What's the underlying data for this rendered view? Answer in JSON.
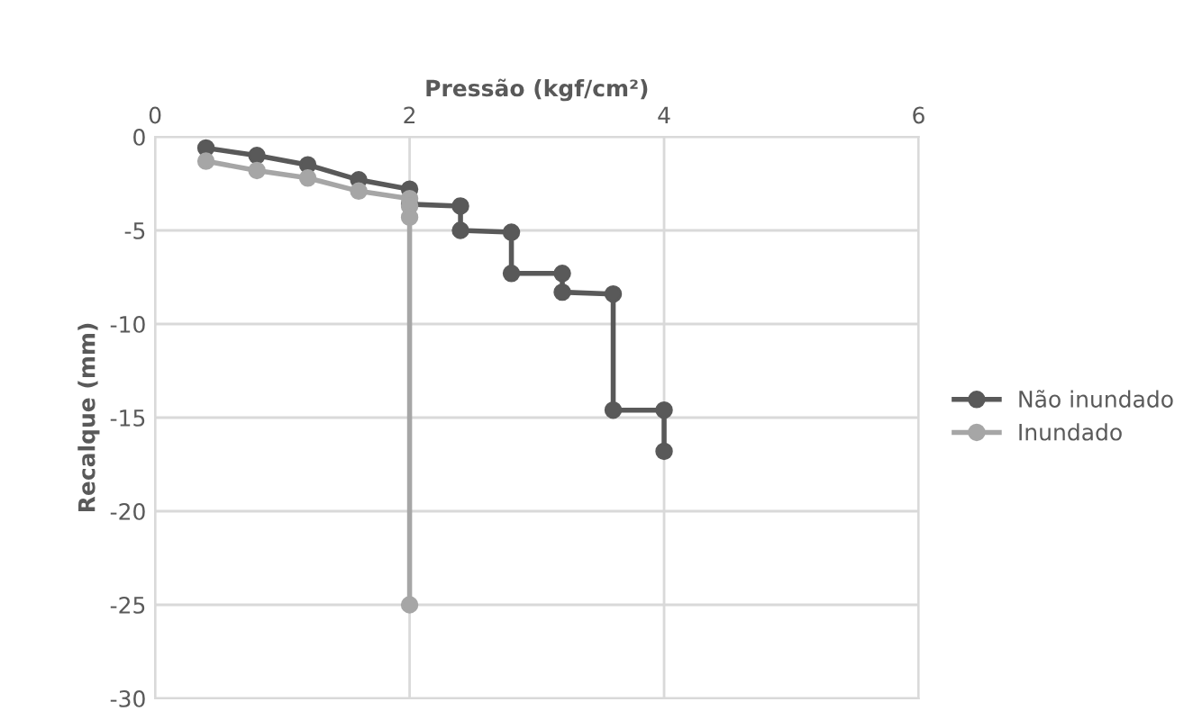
{
  "chart_data": {
    "type": "line",
    "xlabel": "Pressão (kgf/cm²)",
    "ylabel": "Recalque (mm)",
    "xlim": [
      0,
      6
    ],
    "xticks": [
      0,
      2,
      4,
      6
    ],
    "ylim": [
      -30,
      0
    ],
    "yticks": [
      -30,
      -25,
      -20,
      -15,
      -10,
      -5,
      0
    ],
    "grid": true,
    "legend": "right",
    "marker": "circle",
    "line_style": "solid",
    "series": [
      {
        "name": "Não inundado",
        "color": "#595959",
        "x": [
          0.4,
          0.8,
          1.2,
          1.6,
          2,
          2,
          2.4,
          2.4,
          2.8,
          2.8,
          3.2,
          3.2,
          3.6,
          3.6,
          4,
          4
        ],
        "values": [
          -0.6,
          -1,
          -1.5,
          -2.3,
          -2.8,
          -3.6,
          -3.7,
          -5.0,
          -5.1,
          -7.3,
          -7.3,
          -8.3,
          -8.4,
          -14.6,
          -14.6,
          -16.8
        ]
      },
      {
        "name": "Inundado",
        "color": "#a6a6a6",
        "x": [
          0.4,
          0.8,
          1.2,
          1.6,
          2,
          2,
          2,
          2
        ],
        "values": [
          -1.3,
          -1.8,
          -2.2,
          -2.9,
          -3.3,
          -3.7,
          -4.3,
          -25
        ]
      }
    ]
  }
}
